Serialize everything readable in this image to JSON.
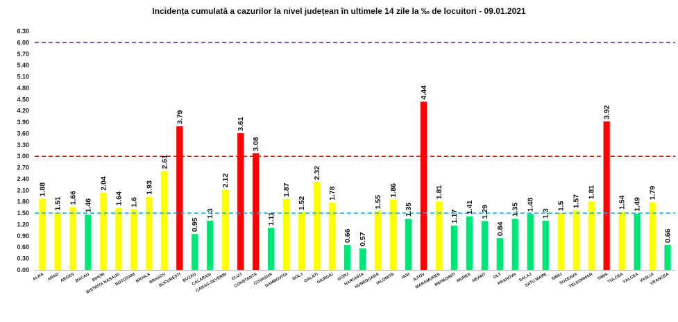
{
  "chart_data": {
    "type": "bar",
    "title": "Incidența cumulată a cazurilor la nivel județean în ultimele 14 zile la ‰ de locuitori - 09.01.2021",
    "xlabel": "",
    "ylabel": "",
    "ylim": [
      0,
      6.3
    ],
    "yticks": [
      "0.00",
      "0.30",
      "0.60",
      "0.90",
      "1.20",
      "1.50",
      "1.80",
      "2.10",
      "2.40",
      "2.70",
      "3.00",
      "3.30",
      "3.60",
      "3.90",
      "4.20",
      "4.50",
      "4.80",
      "5.10",
      "5.40",
      "5.70",
      "6.00",
      "6.30"
    ],
    "grid": false,
    "legend": "none",
    "reference_lines": [
      {
        "value": 6.0,
        "color": "#7030A0",
        "style": "dashed"
      },
      {
        "value": 3.0,
        "color": "#FF0000",
        "style": "dashed"
      },
      {
        "value": 1.5,
        "color": "#00B0F0",
        "style": "dashed"
      }
    ],
    "colors": {
      "yellow": "#FFFF00",
      "green": "#00E676",
      "red": "#FF0000"
    },
    "categories": [
      "ALBA",
      "ARAD",
      "ARGES",
      "BACAU",
      "BIHOR",
      "BISTRITA NASAUD",
      "BOTOSANI",
      "BRAILA",
      "BRASOV",
      "BUCURESTI",
      "BUZAU",
      "CALARASI",
      "CARAS-SEVERIN",
      "CLUJ",
      "CONSTANTA",
      "COVASNA",
      "DAMBOVITA",
      "DOLJ",
      "GALATI",
      "GIURGIU",
      "GORJ",
      "HARGHITA",
      "HUNEDOARA",
      "IALOMITA",
      "IASI",
      "ILFOV",
      "MARAMURES",
      "MEHEDINTI",
      "MURES",
      "NEAMT",
      "OLT",
      "PRAHOVA",
      "SALAJ",
      "SATU MARE",
      "SIBIU",
      "SUCEAVA",
      "TELEORMAN",
      "TIMIS",
      "TULCEA",
      "VALCEA",
      "VASLUI",
      "VRANCEA"
    ],
    "values": [
      1.88,
      1.51,
      1.66,
      1.46,
      2.04,
      1.64,
      1.6,
      1.93,
      2.61,
      3.79,
      0.95,
      1.3,
      2.12,
      3.61,
      3.08,
      1.11,
      1.87,
      1.52,
      2.32,
      1.78,
      0.66,
      0.57,
      1.55,
      1.86,
      1.35,
      4.44,
      1.81,
      1.17,
      1.41,
      1.29,
      0.84,
      1.35,
      1.48,
      1.3,
      1.5,
      1.57,
      1.81,
      3.92,
      1.54,
      1.49,
      1.79,
      0.66
    ],
    "value_labels": [
      "1.88",
      "1.51",
      "1.66",
      "1.46",
      "2.04",
      "1.64",
      "1.6",
      "1.93",
      "2.61",
      "3.79",
      "0.95",
      "1.3",
      "2.12",
      "3.61",
      "3.08",
      "1.11",
      "1.87",
      "1.52",
      "2.32",
      "1.78",
      "0.66",
      "0.57",
      "1.55",
      "1.86",
      "1.35",
      "4.44",
      "1.81",
      "1.17",
      "1.41",
      "1.29",
      "0.84",
      "1.35",
      "1.48",
      "1.3",
      "1.5",
      "1.57",
      "1.81",
      "3.92",
      "1.54",
      "1.49",
      "1.79",
      "0.66"
    ],
    "bar_colors": [
      "yellow",
      "yellow",
      "yellow",
      "green",
      "yellow",
      "yellow",
      "yellow",
      "yellow",
      "yellow",
      "red",
      "green",
      "green",
      "yellow",
      "red",
      "red",
      "green",
      "yellow",
      "yellow",
      "yellow",
      "yellow",
      "green",
      "green",
      "yellow",
      "yellow",
      "green",
      "red",
      "yellow",
      "green",
      "green",
      "green",
      "green",
      "green",
      "green",
      "green",
      "yellow",
      "yellow",
      "yellow",
      "red",
      "yellow",
      "green",
      "yellow",
      "green"
    ]
  }
}
